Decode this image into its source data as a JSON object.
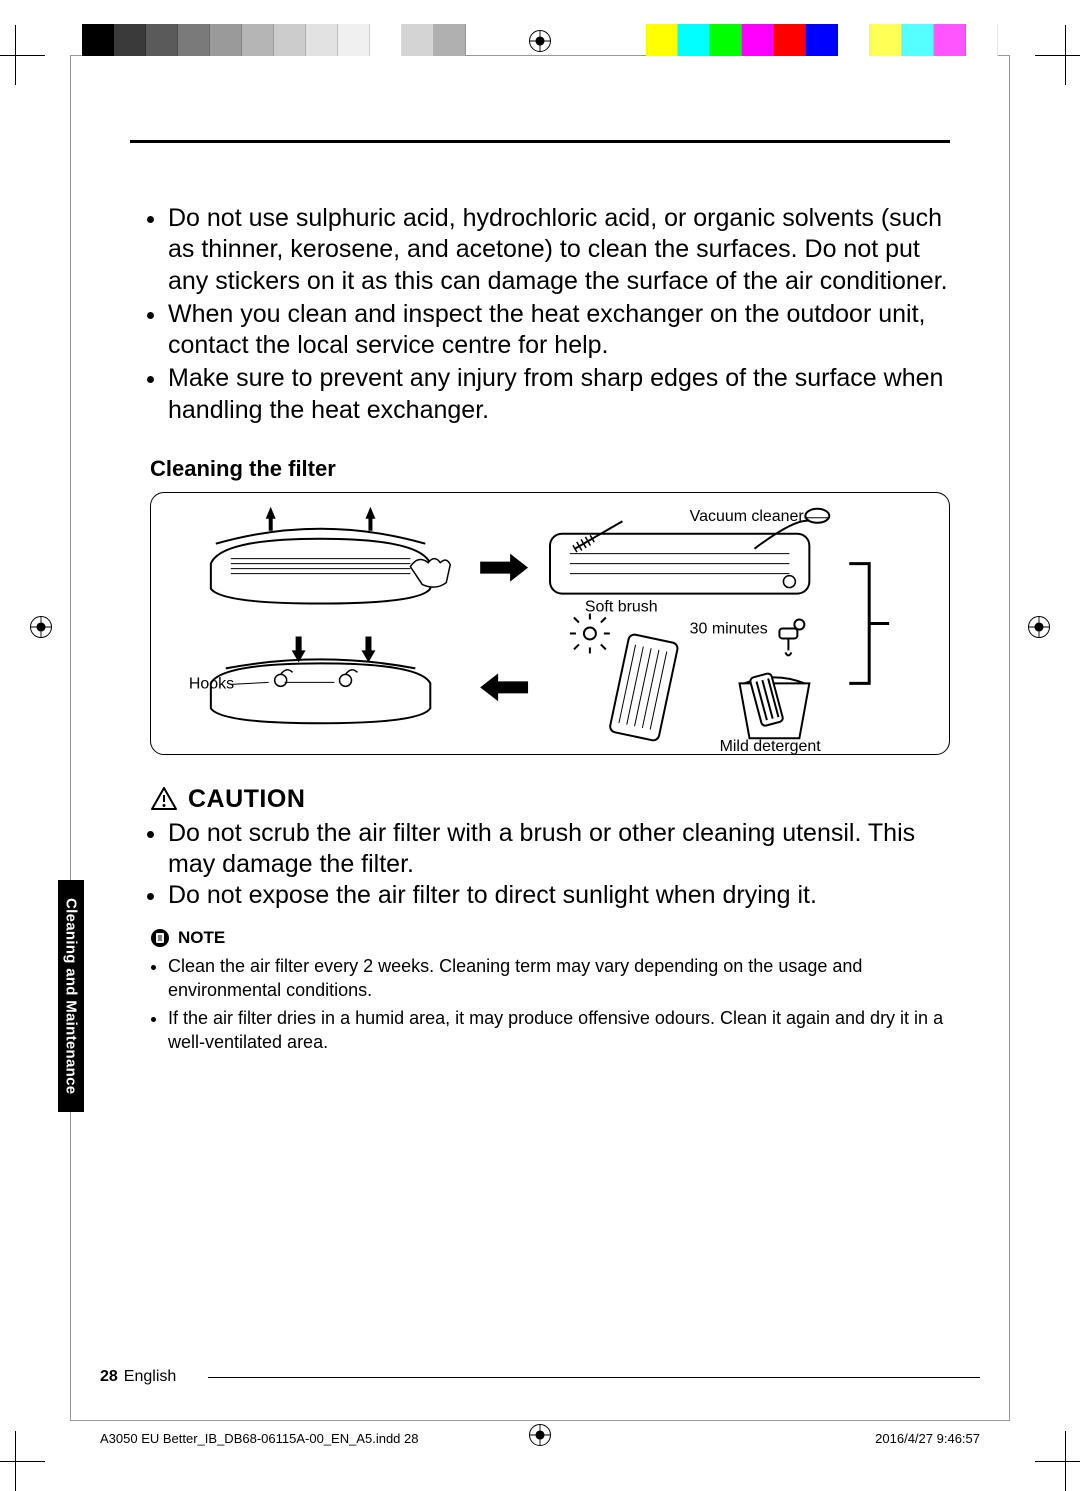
{
  "print_marks": {
    "color_swatches_left": [
      "#000000",
      "#3a3a3a",
      "#5a5a5a",
      "#7a7a7a",
      "#9a9a9a",
      "#b5b5b5",
      "#cccccc",
      "#e2e2e2",
      "#f0f0f0",
      "#ffffff",
      "#d4d4d4",
      "#b0b0b0"
    ],
    "color_swatches_right": [
      "#ffff00",
      "#00ffff",
      "#00ff00",
      "#ff00ff",
      "#ff0000",
      "#0000ff",
      "#ffffff",
      "#ffff55",
      "#55ffff",
      "#ff55ff",
      "#ffffff"
    ]
  },
  "body": {
    "bullets": [
      "Do not use sulphuric acid, hydrochloric acid, or organic solvents (such as thinner, kerosene, and acetone) to clean the surfaces. Do not put any stickers on it as this can damage the surface of the air conditioner.",
      "When you clean and inspect the heat exchanger on the outdoor unit, contact the local service centre for help.",
      "Make sure to prevent any injury from sharp edges of the surface when handling the heat exchanger."
    ],
    "filter_heading": "Cleaning the filter"
  },
  "diagram": {
    "labels": {
      "vacuum": "Vacuum cleaner",
      "brush": "Soft brush",
      "hooks": "Hooks",
      "time": "30 minutes",
      "detergent": "Mild detergent"
    }
  },
  "caution": {
    "label": "CAUTION",
    "items": [
      "Do not scrub the air filter with a brush or other cleaning utensil. This may damage the filter.",
      "Do not expose the air filter to direct sunlight when drying it."
    ]
  },
  "note": {
    "label": "NOTE",
    "items": [
      "Clean the air filter every 2 weeks. Cleaning term may vary depending on the usage and environmental conditions.",
      "If the air filter dries in a humid area, it may produce offensive odours. Clean it again and dry it in a well-ventilated area."
    ]
  },
  "side_tab": "Cleaning and Maintenance",
  "footer": {
    "page_num": "28",
    "page_lang": "English",
    "slug_left": "A3050 EU Better_IB_DB68-06115A-00_EN_A5.indd   28",
    "slug_right": "2016/4/27   9:46:57"
  }
}
